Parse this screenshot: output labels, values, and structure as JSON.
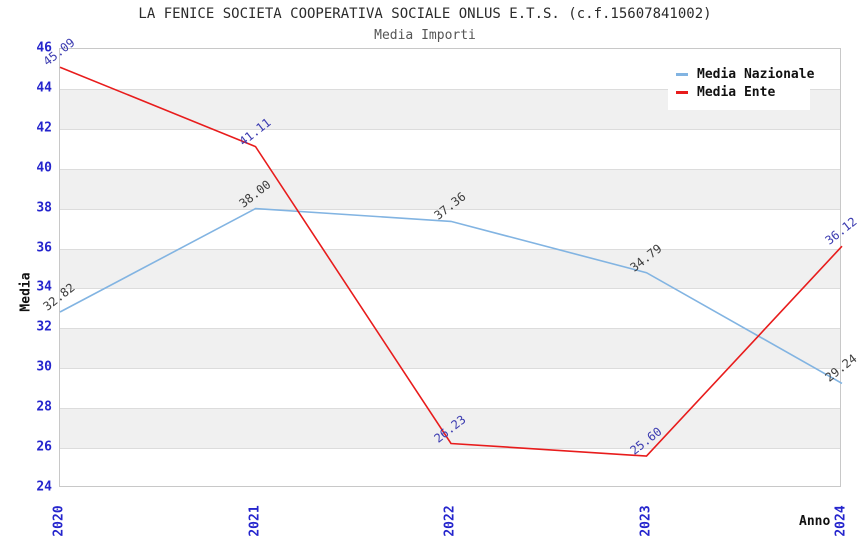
{
  "chart_data": {
    "type": "line",
    "title": "LA FENICE SOCIETA COOPERATIVA SOCIALE ONLUS E.T.S. (c.f.15607841002)",
    "subtitle": "Media Importi",
    "xlabel": "Anno",
    "ylabel": "Media",
    "x": [
      2020,
      2021,
      2022,
      2023,
      2024
    ],
    "xlim": [
      2020,
      2024
    ],
    "ylim": [
      24,
      46
    ],
    "ytick_step": 2,
    "grid": "horizontal-bands-alternating",
    "legend_position": "top-right-inside",
    "series": [
      {
        "name": "Media Nazionale",
        "color": "#82b4e2",
        "label_color": "#3d3d3d",
        "values": [
          32.82,
          38.0,
          37.36,
          34.79,
          29.24
        ]
      },
      {
        "name": "Media Ente",
        "color": "#e81c1c",
        "label_color": "#3b3bb0",
        "values": [
          45.09,
          41.11,
          26.23,
          25.6,
          36.12
        ]
      }
    ],
    "colors": {
      "tick_label": "#2525cd",
      "band_gray": "#f0f0f0",
      "gridline": "#dcdcdc",
      "axis_border": "#c8c8c8",
      "title": "#2b2b2b",
      "subtitle": "#555555",
      "axis_title": "#111111",
      "legend_text": "#111111",
      "background": "#ffffff"
    }
  }
}
